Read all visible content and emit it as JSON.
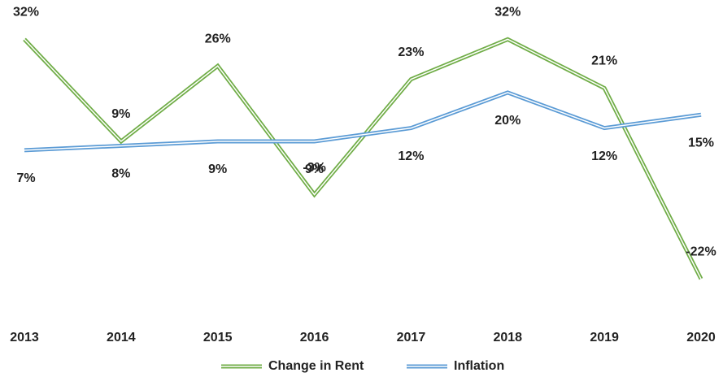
{
  "chart_data": {
    "type": "line",
    "categories": [
      "2013",
      "2014",
      "2015",
      "2016",
      "2017",
      "2018",
      "2019",
      "2020"
    ],
    "series": [
      {
        "name": "Change in Rent",
        "color": "#70ad47",
        "values": [
          32,
          9,
          26,
          -3,
          23,
          32,
          21,
          -22
        ],
        "value_labels": [
          "32%",
          "9%",
          "26%",
          "-3%",
          "23%",
          "32%",
          "21%",
          "-22%"
        ]
      },
      {
        "name": "Inflation",
        "color": "#5b9bd5",
        "values": [
          7,
          8,
          9,
          9,
          12,
          20,
          12,
          15
        ],
        "value_labels": [
          "7%",
          "8%",
          "9%",
          "9%",
          "12%",
          "20%",
          "12%",
          "15%"
        ]
      }
    ],
    "ylim": [
      -30,
      35
    ],
    "grid": false,
    "legend": "bottom"
  }
}
